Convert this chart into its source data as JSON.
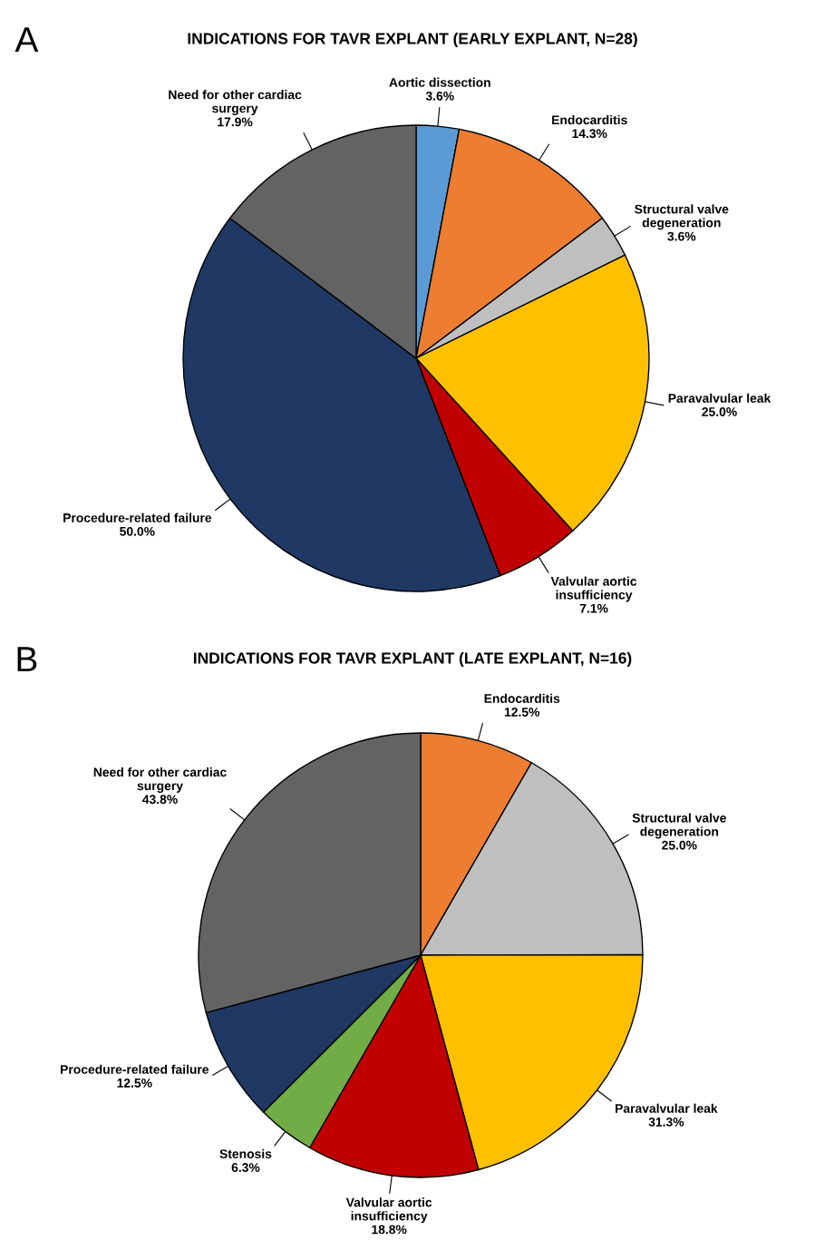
{
  "chart_data": [
    {
      "type": "pie",
      "title": "INDICATIONS FOR TAVR EXPLANT (EARLY EXPLANT, N=28)",
      "annotations": [
        "A"
      ],
      "categories": [
        "Aortic dissection",
        "Endocarditis",
        "Structural valve\ndegeneration",
        "Paravalvular leak",
        "Valvular aortic\ninsufficiency",
        "Procedure-related failure",
        "Need for other cardiac\nsurgery"
      ],
      "values": [
        3.6,
        14.3,
        3.6,
        25.0,
        7.1,
        50.0,
        17.9
      ],
      "value_labels": [
        "3.6%",
        "14.3%",
        "3.6%",
        "25.0%",
        "7.1%",
        "50.0%",
        "17.9%"
      ],
      "colors": [
        "#5b9bd5",
        "#ed7d31",
        "#bfbfbf",
        "#ffc000",
        "#c00000",
        "#203864",
        "#636363"
      ]
    },
    {
      "type": "pie",
      "title": "INDICATIONS FOR TAVR EXPLANT (LATE EXPLANT, N=16)",
      "annotations": [
        "B"
      ],
      "categories": [
        "Endocarditis",
        "Structural valve\ndegeneration",
        "Paravalvular leak",
        "Valvular aortic\ninsufficiency",
        "Stenosis",
        "Procedure-related failure",
        "Need for other cardiac\nsurgery"
      ],
      "values": [
        12.5,
        25.0,
        31.3,
        18.8,
        6.3,
        12.5,
        43.8
      ],
      "value_labels": [
        "12.5%",
        "25.0%",
        "31.3%",
        "18.8%",
        "6.3%",
        "12.5%",
        "43.8%"
      ],
      "colors": [
        "#ed7d31",
        "#bfbfbf",
        "#ffc000",
        "#c00000",
        "#70ad47",
        "#203864",
        "#636363"
      ]
    }
  ]
}
